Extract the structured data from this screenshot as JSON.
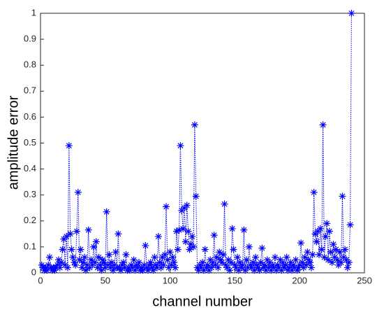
{
  "chart_data": {
    "type": "line",
    "xlabel": "channel number",
    "ylabel": "amplitude error",
    "x": [
      1,
      2,
      3,
      4,
      5,
      6,
      7,
      8,
      9,
      10,
      11,
      12,
      13,
      14,
      15,
      16,
      17,
      18,
      19,
      20,
      21,
      22,
      23,
      24,
      25,
      26,
      27,
      28,
      29,
      30,
      31,
      32,
      33,
      34,
      35,
      36,
      37,
      38,
      39,
      40,
      41,
      42,
      43,
      44,
      45,
      46,
      47,
      48,
      49,
      50,
      51,
      52,
      53,
      54,
      55,
      56,
      57,
      58,
      59,
      60,
      61,
      62,
      63,
      64,
      65,
      66,
      67,
      68,
      69,
      70,
      71,
      72,
      73,
      74,
      75,
      76,
      77,
      78,
      79,
      80,
      81,
      82,
      83,
      84,
      85,
      86,
      87,
      88,
      89,
      90,
      91,
      92,
      93,
      94,
      95,
      96,
      97,
      98,
      99,
      100,
      101,
      102,
      103,
      104,
      105,
      106,
      107,
      108,
      109,
      110,
      111,
      112,
      113,
      114,
      115,
      116,
      117,
      118,
      119,
      120,
      121,
      122,
      123,
      124,
      125,
      126,
      127,
      128,
      129,
      130,
      131,
      132,
      133,
      134,
      135,
      136,
      137,
      138,
      139,
      140,
      141,
      142,
      143,
      144,
      145,
      146,
      147,
      148,
      149,
      150,
      151,
      152,
      153,
      154,
      155,
      156,
      157,
      158,
      159,
      160,
      161,
      162,
      163,
      164,
      165,
      166,
      167,
      168,
      169,
      170,
      171,
      172,
      173,
      174,
      175,
      176,
      177,
      178,
      179,
      180,
      181,
      182,
      183,
      184,
      185,
      186,
      187,
      188,
      189,
      190,
      191,
      192,
      193,
      194,
      195,
      196,
      197,
      198,
      199,
      200,
      201,
      202,
      203,
      204,
      205,
      206,
      207,
      208,
      209,
      210,
      211,
      212,
      213,
      214,
      215,
      216,
      217,
      218,
      219,
      220,
      221,
      222,
      223,
      224,
      225,
      226,
      227,
      228,
      229,
      230,
      231,
      232,
      233,
      234,
      235,
      236,
      237,
      238,
      239,
      240
    ],
    "series": [
      {
        "color": "#0000ff",
        "values": [
          0.03,
          0.02,
          0.01,
          0.02,
          0.01,
          0.03,
          0.06,
          0.02,
          0.01,
          0.02,
          0.01,
          0.02,
          0.03,
          0.05,
          0.02,
          0.04,
          0.09,
          0.13,
          0.03,
          0.14,
          0.02,
          0.49,
          0.15,
          0.09,
          0.06,
          0.04,
          0.03,
          0.16,
          0.31,
          0.05,
          0.09,
          0.02,
          0.04,
          0.06,
          0.01,
          0.03,
          0.165,
          0.02,
          0.05,
          0.03,
          0.1,
          0.04,
          0.12,
          0.02,
          0.06,
          0.03,
          0.01,
          0.05,
          0.04,
          0.02,
          0.235,
          0.03,
          0.07,
          0.02,
          0.04,
          0.01,
          0.03,
          0.08,
          0.02,
          0.15,
          0.02,
          0.01,
          0.03,
          0.04,
          0.02,
          0.07,
          0.01,
          0.02,
          0.01,
          0.03,
          0.02,
          0.05,
          0.01,
          0.03,
          0.02,
          0.04,
          0.01,
          0.02,
          0.01,
          0.03,
          0.105,
          0.02,
          0.01,
          0.03,
          0.04,
          0.02,
          0.01,
          0.06,
          0.03,
          0.02,
          0.14,
          0.04,
          0.02,
          0.06,
          0.03,
          0.07,
          0.255,
          0.05,
          0.02,
          0.08,
          0.03,
          0.06,
          0.04,
          0.02,
          0.16,
          0.09,
          0.165,
          0.49,
          0.24,
          0.17,
          0.25,
          0.12,
          0.26,
          0.16,
          0.09,
          0.11,
          0.14,
          0.1,
          0.57,
          0.295,
          0.02,
          0.01,
          0.03,
          0.02,
          0.04,
          0.01,
          0.09,
          0.02,
          0.03,
          0.01,
          0.05,
          0.02,
          0.04,
          0.145,
          0.03,
          0.06,
          0.02,
          0.08,
          0.05,
          0.04,
          0.07,
          0.265,
          0.03,
          0.02,
          0.05,
          0.01,
          0.04,
          0.17,
          0.09,
          0.03,
          0.02,
          0.06,
          0.01,
          0.04,
          0.02,
          0.03,
          0.165,
          0.01,
          0.05,
          0.02,
          0.1,
          0.03,
          0.02,
          0.04,
          0.01,
          0.06,
          0.03,
          0.02,
          0.01,
          0.04,
          0.095,
          0.02,
          0.03,
          0.01,
          0.05,
          0.02,
          0.04,
          0.01,
          0.03,
          0.02,
          0.06,
          0.01,
          0.03,
          0.02,
          0.05,
          0.01,
          0.04,
          0.02,
          0.03,
          0.06,
          0.01,
          0.02,
          0.04,
          0.01,
          0.03,
          0.02,
          0.05,
          0.01,
          0.02,
          0.03,
          0.115,
          0.04,
          0.02,
          0.06,
          0.03,
          0.08,
          0.05,
          0.04,
          0.02,
          0.07,
          0.31,
          0.15,
          0.12,
          0.16,
          0.07,
          0.17,
          0.09,
          0.57,
          0.06,
          0.14,
          0.19,
          0.05,
          0.16,
          0.08,
          0.04,
          0.11,
          0.06,
          0.09,
          0.05,
          0.03,
          0.08,
          0.04,
          0.295,
          0.06,
          0.09,
          0.05,
          0.02,
          0.04,
          0.185,
          1.0
        ]
      }
    ],
    "xlim": [
      0,
      250
    ],
    "xticks": [
      0,
      50,
      100,
      150,
      200,
      250
    ],
    "ylim": [
      0,
      1
    ],
    "yticks": [
      0,
      0.1,
      0.2,
      0.3,
      0.4,
      0.5,
      0.6,
      0.7,
      0.8,
      0.9,
      1
    ]
  }
}
